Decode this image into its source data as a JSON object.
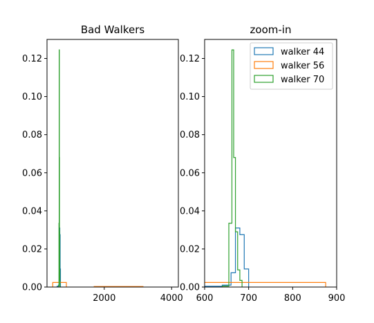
{
  "chart_data": [
    {
      "type": "histogram",
      "title": "Bad Walkers",
      "xlim": [
        300,
        4200
      ],
      "ylim": [
        0,
        0.13
      ],
      "xticks": [
        2000,
        4000
      ],
      "yticks": [
        0.0,
        0.02,
        0.04,
        0.06,
        0.08,
        0.1,
        0.12
      ],
      "ytick_labels": [
        "0.00",
        "0.02",
        "0.04",
        "0.06",
        "0.08",
        "0.10",
        "0.12"
      ],
      "series": [
        {
          "name": "walker 44",
          "color": "#1f77b4",
          "bins": [
            [
              600,
              640,
              0.0004
            ],
            [
              640,
              660,
              0.001
            ],
            [
              660,
              670,
              0.0075
            ],
            [
              670,
              680,
              0.031
            ],
            [
              680,
              690,
              0.0275
            ],
            [
              690,
              700,
              0.0095
            ]
          ]
        },
        {
          "name": "walker 56",
          "color": "#ff7f0e",
          "bins": [
            [
              470,
              875,
              0.0024
            ],
            [
              1700,
              3150,
              0.0003
            ]
          ]
        },
        {
          "name": "walker 70",
          "color": "#2ca02c",
          "bins": [
            [
              640,
              655,
              0.0005
            ],
            [
              655,
              662,
              0.0335
            ],
            [
              662,
              666,
              0.1245
            ],
            [
              666,
              670,
              0.068
            ],
            [
              670,
              675,
              0.029
            ],
            [
              675,
              680,
              0.009
            ],
            [
              680,
              685,
              0.0035
            ]
          ]
        }
      ]
    },
    {
      "type": "histogram",
      "title": "zoom-in",
      "xlim": [
        600,
        900
      ],
      "ylim": [
        0,
        0.13
      ],
      "xticks": [
        600,
        700,
        800,
        900
      ],
      "yticks": [
        0.0,
        0.02,
        0.04,
        0.06,
        0.08,
        0.1,
        0.12
      ],
      "ytick_labels": [
        "0.00",
        "0.02",
        "0.04",
        "0.06",
        "0.08",
        "0.10",
        "0.12"
      ],
      "legend": {
        "position": "top-right",
        "entries": [
          "walker 44",
          "walker 56",
          "walker 70"
        ]
      },
      "series": [
        {
          "name": "walker 44",
          "color": "#1f77b4",
          "bins": [
            [
              600,
              640,
              0.0004
            ],
            [
              640,
              660,
              0.001
            ],
            [
              660,
              670,
              0.0075
            ],
            [
              670,
              680,
              0.031
            ],
            [
              680,
              690,
              0.0275
            ],
            [
              690,
              700,
              0.0095
            ]
          ]
        },
        {
          "name": "walker 56",
          "color": "#ff7f0e",
          "bins": [
            [
              470,
              875,
              0.0024
            ]
          ]
        },
        {
          "name": "walker 70",
          "color": "#2ca02c",
          "bins": [
            [
              640,
              655,
              0.0005
            ],
            [
              655,
              662,
              0.0335
            ],
            [
              662,
              666,
              0.1245
            ],
            [
              666,
              670,
              0.068
            ],
            [
              670,
              675,
              0.029
            ],
            [
              675,
              680,
              0.009
            ],
            [
              680,
              685,
              0.0035
            ]
          ]
        }
      ]
    }
  ]
}
